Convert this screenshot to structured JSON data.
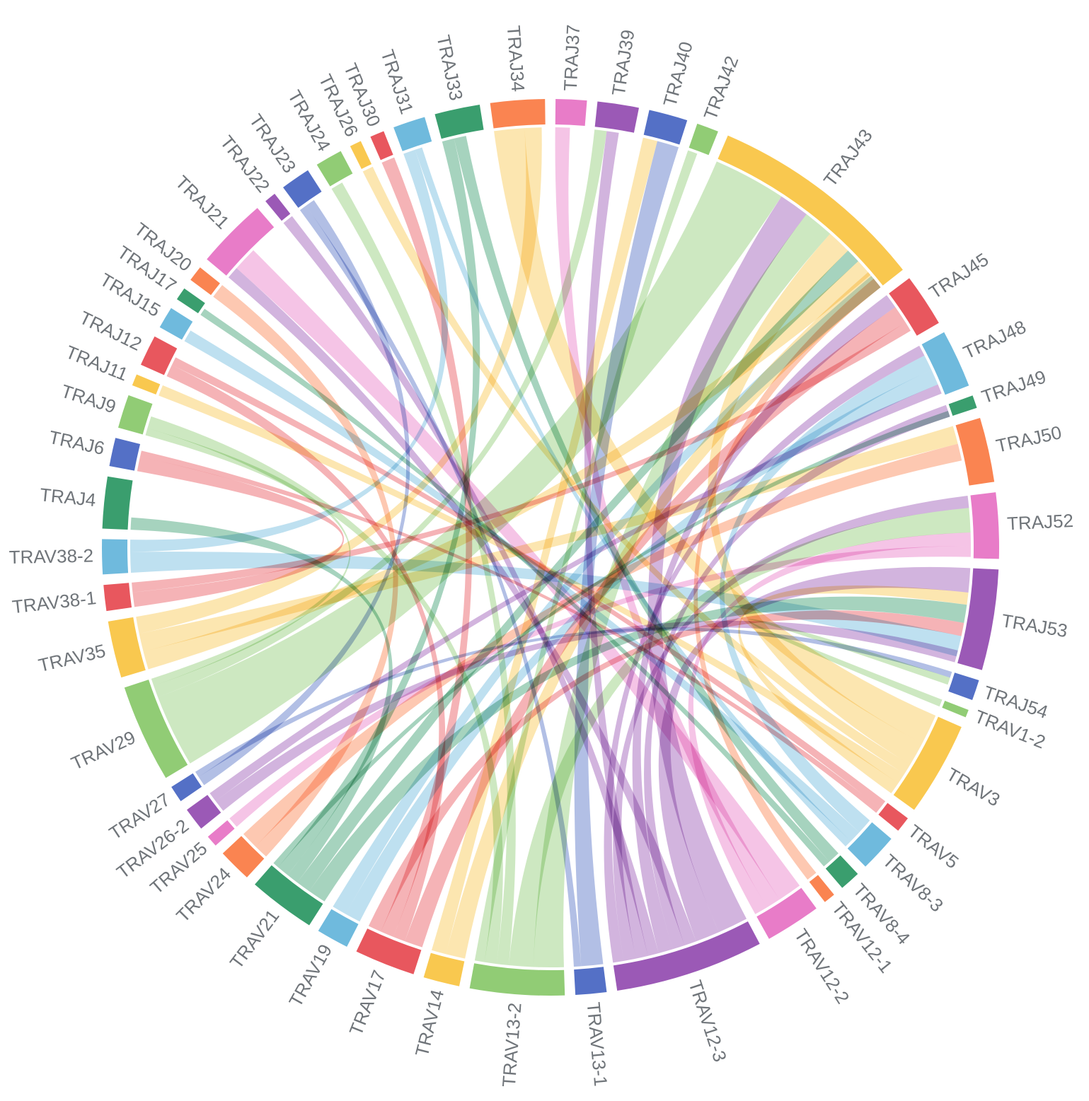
{
  "chart_data": {
    "type": "chord",
    "title": "",
    "palette": [
      "#e8575e",
      "#6fbadd",
      "#3a9e6e",
      "#f9c84f",
      "#5470c6",
      "#91cc75",
      "#fa8451",
      "#9b59b6",
      "#e87cc8"
    ],
    "segments": [
      {
        "name": "TRAJ4",
        "weight": 4.0,
        "color": "#3a9e6e"
      },
      {
        "name": "TRAJ6",
        "weight": 2.2,
        "color": "#5470c6"
      },
      {
        "name": "TRAJ9",
        "weight": 2.6,
        "color": "#91cc75"
      },
      {
        "name": "TRAJ11",
        "weight": 0.9,
        "color": "#f9c84f"
      },
      {
        "name": "TRAJ12",
        "weight": 2.4,
        "color": "#e8575e"
      },
      {
        "name": "TRAJ15",
        "weight": 1.7,
        "color": "#6fbadd"
      },
      {
        "name": "TRAJ17",
        "weight": 1.0,
        "color": "#3a9e6e"
      },
      {
        "name": "TRAJ20",
        "weight": 1.2,
        "color": "#fa8451"
      },
      {
        "name": "TRAJ21",
        "weight": 5.5,
        "color": "#e87cc8"
      },
      {
        "name": "TRAJ22",
        "weight": 0.9,
        "color": "#9b59b6"
      },
      {
        "name": "TRAJ23",
        "weight": 2.3,
        "color": "#5470c6"
      },
      {
        "name": "TRAJ24",
        "weight": 2.1,
        "color": "#91cc75"
      },
      {
        "name": "TRAJ26",
        "weight": 0.9,
        "color": "#f9c84f"
      },
      {
        "name": "TRAJ30",
        "weight": 1.1,
        "color": "#e8575e"
      },
      {
        "name": "TRAJ31",
        "weight": 2.5,
        "color": "#6fbadd"
      },
      {
        "name": "TRAJ33",
        "weight": 3.5,
        "color": "#3a9e6e"
      },
      {
        "name": "TRAJ34",
        "weight": 4.2,
        "color": "#fa8451"
      },
      {
        "name": "TRAJ37",
        "weight": 2.4,
        "color": "#e87cc8"
      },
      {
        "name": "TRAJ39",
        "weight": 3.2,
        "color": "#9b59b6"
      },
      {
        "name": "TRAJ40",
        "weight": 3.0,
        "color": "#5470c6"
      },
      {
        "name": "TRAJ42",
        "weight": 1.7,
        "color": "#91cc75"
      },
      {
        "name": "TRAJ43",
        "weight": 17.0,
        "color": "#f9c84f"
      },
      {
        "name": "TRAJ45",
        "weight": 4.1,
        "color": "#e8575e"
      },
      {
        "name": "TRAJ48",
        "weight": 4.5,
        "color": "#6fbadd"
      },
      {
        "name": "TRAJ49",
        "weight": 1.0,
        "color": "#3a9e6e"
      },
      {
        "name": "TRAJ50",
        "weight": 5.0,
        "color": "#fa8451"
      },
      {
        "name": "TRAJ52",
        "weight": 5.1,
        "color": "#e87cc8"
      },
      {
        "name": "TRAJ53",
        "weight": 7.8,
        "color": "#9b59b6"
      },
      {
        "name": "TRAJ54",
        "weight": 1.6,
        "color": "#5470c6"
      },
      {
        "name": "TRAV1-2",
        "weight": 0.6,
        "color": "#91cc75"
      },
      {
        "name": "TRAV3",
        "weight": 7.3,
        "color": "#f9c84f"
      },
      {
        "name": "TRAV5",
        "weight": 1.2,
        "color": "#e8575e"
      },
      {
        "name": "TRAV8-3",
        "weight": 2.9,
        "color": "#6fbadd"
      },
      {
        "name": "TRAV8-4",
        "weight": 1.6,
        "color": "#3a9e6e"
      },
      {
        "name": "TRAV12-1",
        "weight": 0.9,
        "color": "#fa8451"
      },
      {
        "name": "TRAV12-2",
        "weight": 4.3,
        "color": "#e87cc8"
      },
      {
        "name": "TRAV12-3",
        "weight": 11.5,
        "color": "#9b59b6"
      },
      {
        "name": "TRAV13-1",
        "weight": 2.4,
        "color": "#5470c6"
      },
      {
        "name": "TRAV13-2",
        "weight": 7.3,
        "color": "#91cc75"
      },
      {
        "name": "TRAV14",
        "weight": 2.8,
        "color": "#f9c84f"
      },
      {
        "name": "TRAV17",
        "weight": 4.7,
        "color": "#e8575e"
      },
      {
        "name": "TRAV19",
        "weight": 2.5,
        "color": "#6fbadd"
      },
      {
        "name": "TRAV21",
        "weight": 5.2,
        "color": "#3a9e6e"
      },
      {
        "name": "TRAV24",
        "weight": 2.6,
        "color": "#fa8451"
      },
      {
        "name": "TRAV25",
        "weight": 0.9,
        "color": "#e87cc8"
      },
      {
        "name": "TRAV26-2",
        "weight": 1.8,
        "color": "#9b59b6"
      },
      {
        "name": "TRAV27",
        "weight": 1.3,
        "color": "#5470c6"
      },
      {
        "name": "TRAV29",
        "weight": 7.6,
        "color": "#91cc75"
      },
      {
        "name": "TRAV35",
        "weight": 4.4,
        "color": "#f9c84f"
      },
      {
        "name": "TRAV38-1",
        "weight": 2.0,
        "color": "#e8575e"
      },
      {
        "name": "TRAV38-2",
        "weight": 2.7,
        "color": "#6fbadd"
      }
    ],
    "links": [
      {
        "source": "TRAV29",
        "target": "TRAJ43",
        "value": 6.0
      },
      {
        "source": "TRAV29",
        "target": "TRAJ39",
        "value": 1.0
      },
      {
        "source": "TRAV29",
        "target": "TRAJ9",
        "value": 0.6
      },
      {
        "source": "TRAV12-3",
        "target": "TRAJ43",
        "value": 2.5
      },
      {
        "source": "TRAV12-3",
        "target": "TRAJ53",
        "value": 2.0
      },
      {
        "source": "TRAV12-3",
        "target": "TRAJ21",
        "value": 1.0
      },
      {
        "source": "TRAV12-3",
        "target": "TRAJ49",
        "value": 1.0
      },
      {
        "source": "TRAV12-3",
        "target": "TRAJ45",
        "value": 1.2
      },
      {
        "source": "TRAV12-3",
        "target": "TRAJ22",
        "value": 0.9
      },
      {
        "source": "TRAV12-3",
        "target": "TRAJ39",
        "value": 1.0
      },
      {
        "source": "TRAV12-3",
        "target": "TRAJ52",
        "value": 1.0
      },
      {
        "source": "TRAV12-3",
        "target": "TRAJ48",
        "value": 0.9
      },
      {
        "source": "TRAV13-2",
        "target": "TRAJ43",
        "value": 2.5
      },
      {
        "source": "TRAV13-2",
        "target": "TRAJ52",
        "value": 2.0
      },
      {
        "source": "TRAV13-2",
        "target": "TRAJ24",
        "value": 1.0
      },
      {
        "source": "TRAV13-2",
        "target": "TRAJ9",
        "value": 1.0
      },
      {
        "source": "TRAV13-2",
        "target": "TRAJ42",
        "value": 0.8
      },
      {
        "source": "TRAV3",
        "target": "TRAJ34",
        "value": 2.5
      },
      {
        "source": "TRAV3",
        "target": "TRAJ43",
        "value": 2.0
      },
      {
        "source": "TRAV3",
        "target": "TRAJ26",
        "value": 0.9
      },
      {
        "source": "TRAV3",
        "target": "TRAJ11",
        "value": 0.9
      },
      {
        "source": "TRAV3",
        "target": "TRAJ53",
        "value": 1.0
      },
      {
        "source": "TRAV21",
        "target": "TRAJ53",
        "value": 1.5
      },
      {
        "source": "TRAV21",
        "target": "TRAJ43",
        "value": 1.2
      },
      {
        "source": "TRAV21",
        "target": "TRAJ4",
        "value": 1.0
      },
      {
        "source": "TRAV21",
        "target": "TRAJ33",
        "value": 1.0
      },
      {
        "source": "TRAV21",
        "target": "TRAJ49",
        "value": 0.5
      },
      {
        "source": "TRAV17",
        "target": "TRAJ45",
        "value": 1.5
      },
      {
        "source": "TRAV17",
        "target": "TRAJ12",
        "value": 1.0
      },
      {
        "source": "TRAV17",
        "target": "TRAJ30",
        "value": 1.1
      },
      {
        "source": "TRAV17",
        "target": "TRAJ53",
        "value": 1.1
      },
      {
        "source": "TRAV12-2",
        "target": "TRAJ21",
        "value": 2.0
      },
      {
        "source": "TRAV12-2",
        "target": "TRAJ37",
        "value": 1.2
      },
      {
        "source": "TRAV12-2",
        "target": "TRAJ52",
        "value": 1.1
      },
      {
        "source": "TRAV35",
        "target": "TRAJ43",
        "value": 1.5
      },
      {
        "source": "TRAV35",
        "target": "TRAJ50",
        "value": 1.5
      },
      {
        "source": "TRAV35",
        "target": "TRAJ34",
        "value": 1.4
      },
      {
        "source": "TRAV24",
        "target": "TRAJ20",
        "value": 1.2
      },
      {
        "source": "TRAV24",
        "target": "TRAJ50",
        "value": 1.4
      },
      {
        "source": "TRAV38-2",
        "target": "TRAJ53",
        "value": 1.7
      },
      {
        "source": "TRAV38-2",
        "target": "TRAJ31",
        "value": 1.0
      },
      {
        "source": "TRAV8-3",
        "target": "TRAJ48",
        "value": 1.3
      },
      {
        "source": "TRAV8-3",
        "target": "TRAJ15",
        "value": 1.0
      },
      {
        "source": "TRAV8-3",
        "target": "TRAJ31",
        "value": 0.6
      },
      {
        "source": "TRAV14",
        "target": "TRAJ43",
        "value": 1.6
      },
      {
        "source": "TRAV14",
        "target": "TRAJ40",
        "value": 1.2
      },
      {
        "source": "TRAV19",
        "target": "TRAJ48",
        "value": 1.3
      },
      {
        "source": "TRAV19",
        "target": "TRAJ43",
        "value": 1.2
      },
      {
        "source": "TRAV13-1",
        "target": "TRAJ40",
        "value": 1.8
      },
      {
        "source": "TRAV13-1",
        "target": "TRAJ23",
        "value": 0.6
      },
      {
        "source": "TRAV38-1",
        "target": "TRAJ6",
        "value": 1.2
      },
      {
        "source": "TRAV38-1",
        "target": "TRAJ45",
        "value": 0.8
      },
      {
        "source": "TRAV26-2",
        "target": "TRAJ53",
        "value": 1.0
      },
      {
        "source": "TRAV26-2",
        "target": "TRAJ48",
        "value": 0.8
      },
      {
        "source": "TRAV8-4",
        "target": "TRAJ33",
        "value": 1.0
      },
      {
        "source": "TRAV8-4",
        "target": "TRAJ17",
        "value": 0.6
      },
      {
        "source": "TRAV27",
        "target": "TRAJ23",
        "value": 0.8
      },
      {
        "source": "TRAV27",
        "target": "TRAJ54",
        "value": 0.5
      },
      {
        "source": "TRAV5",
        "target": "TRAJ12",
        "value": 0.7
      },
      {
        "source": "TRAV5",
        "target": "TRAJ6",
        "value": 0.5
      },
      {
        "source": "TRAV12-1",
        "target": "TRAJ43",
        "value": 0.9
      },
      {
        "source": "TRAV25",
        "target": "TRAJ52",
        "value": 0.9
      },
      {
        "source": "TRAV1-2",
        "target": "TRAJ54",
        "value": 0.6
      }
    ]
  }
}
